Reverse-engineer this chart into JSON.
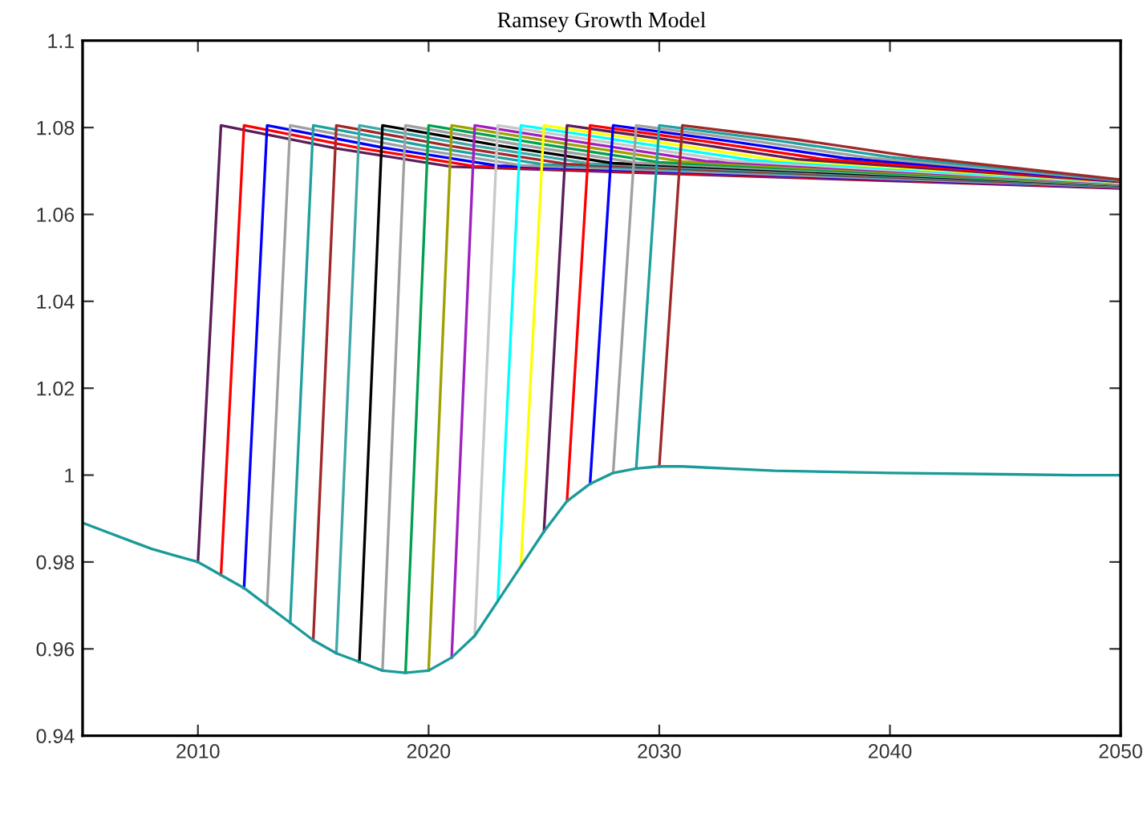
{
  "chart_data": {
    "type": "line",
    "title": "Ramsey Growth Model",
    "xlim": [
      2005,
      2050
    ],
    "xticks": [
      2010,
      2020,
      2030,
      2040,
      2050
    ],
    "ylim": [
      0.94,
      1.1
    ],
    "yticks": [
      0.94,
      0.96,
      0.98,
      1,
      1.02,
      1.04,
      1.06,
      1.08,
      1.1
    ],
    "grid": false,
    "legend": false,
    "series": [
      {
        "color": "#5a1e5a",
        "x": [
          2010,
          2011,
          2016,
          2021,
          2050
        ],
        "values": [
          0.98,
          1.0805,
          1.0752,
          1.071,
          1.066
        ]
      },
      {
        "color": "#ff0000",
        "x": [
          2011,
          2012,
          2017,
          2022,
          2050
        ],
        "values": [
          0.977,
          1.0805,
          1.0753,
          1.0711,
          1.0661
        ]
      },
      {
        "color": "#0000ff",
        "x": [
          2012,
          2013,
          2018,
          2023,
          2050
        ],
        "values": [
          0.974,
          1.0805,
          1.0754,
          1.0712,
          1.0662
        ]
      },
      {
        "color": "#a0a0a0",
        "x": [
          2013,
          2014,
          2019,
          2024,
          2050
        ],
        "values": [
          0.97,
          1.0805,
          1.0755,
          1.0713,
          1.0663
        ]
      },
      {
        "color": "#20a0a0",
        "x": [
          2014,
          2015,
          2020,
          2025,
          2050
        ],
        "values": [
          0.966,
          1.0805,
          1.0756,
          1.0715,
          1.0664
        ]
      },
      {
        "color": "#a02828",
        "x": [
          2015,
          2016,
          2021,
          2026,
          2050
        ],
        "values": [
          0.962,
          1.0805,
          1.0757,
          1.0716,
          1.0665
        ]
      },
      {
        "color": "#40a8a8",
        "x": [
          2016,
          2017,
          2022,
          2027,
          2050
        ],
        "values": [
          0.959,
          1.0805,
          1.0758,
          1.0717,
          1.0666
        ]
      },
      {
        "color": "#000000",
        "x": [
          2017,
          2018,
          2023,
          2028,
          2050
        ],
        "values": [
          0.957,
          1.0805,
          1.0759,
          1.0718,
          1.0667
        ]
      },
      {
        "color": "#a0a0a0",
        "x": [
          2018,
          2019,
          2024,
          2029,
          2050
        ],
        "values": [
          0.955,
          1.0805,
          1.076,
          1.0719,
          1.0668
        ]
      },
      {
        "color": "#00a050",
        "x": [
          2019,
          2020,
          2025,
          2030,
          2050
        ],
        "values": [
          0.9545,
          1.0805,
          1.0761,
          1.072,
          1.0669
        ]
      },
      {
        "color": "#a0a000",
        "x": [
          2020,
          2021,
          2026,
          2031,
          2050
        ],
        "values": [
          0.955,
          1.0805,
          1.0762,
          1.0722,
          1.067
        ]
      },
      {
        "color": "#a020c0",
        "x": [
          2021,
          2022,
          2027,
          2032,
          2050
        ],
        "values": [
          0.958,
          1.0805,
          1.0763,
          1.0723,
          1.0671
        ]
      },
      {
        "color": "#c8c8c8",
        "x": [
          2022,
          2023,
          2028,
          2033,
          2050
        ],
        "values": [
          0.963,
          1.0805,
          1.0764,
          1.0724,
          1.0672
        ]
      },
      {
        "color": "#00ffff",
        "x": [
          2023,
          2024,
          2029,
          2034,
          2050
        ],
        "values": [
          0.971,
          1.0805,
          1.0765,
          1.0725,
          1.0673
        ]
      },
      {
        "color": "#ffff00",
        "x": [
          2024,
          2025,
          2030,
          2035,
          2050
        ],
        "values": [
          0.979,
          1.0805,
          1.0766,
          1.0726,
          1.0674
        ]
      },
      {
        "color": "#5a1e5a",
        "x": [
          2025,
          2026,
          2031,
          2036,
          2050
        ],
        "values": [
          0.987,
          1.0805,
          1.0767,
          1.0727,
          1.0675
        ]
      },
      {
        "color": "#ff0000",
        "x": [
          2026,
          2027,
          2032,
          2037,
          2050
        ],
        "values": [
          0.994,
          1.0805,
          1.0768,
          1.0728,
          1.0676
        ]
      },
      {
        "color": "#0000ff",
        "x": [
          2027,
          2028,
          2033,
          2038,
          2050
        ],
        "values": [
          0.998,
          1.0805,
          1.0769,
          1.073,
          1.0677
        ]
      },
      {
        "color": "#a0a0a0",
        "x": [
          2028,
          2029,
          2034,
          2039,
          2050
        ],
        "values": [
          1.0005,
          1.0805,
          1.077,
          1.0731,
          1.0678
        ]
      },
      {
        "color": "#20a0a0",
        "x": [
          2029,
          2030,
          2035,
          2040,
          2050
        ],
        "values": [
          1.0015,
          1.0805,
          1.0771,
          1.0732,
          1.0679
        ]
      },
      {
        "color": "#a02828",
        "x": [
          2030,
          2031,
          2036,
          2041,
          2050
        ],
        "values": [
          1.002,
          1.0805,
          1.0772,
          1.0733,
          1.068
        ]
      },
      {
        "color": "#1a9a9a",
        "x": [
          2005,
          2006,
          2007,
          2008,
          2009,
          2010,
          2011,
          2012,
          2013,
          2014,
          2015,
          2016,
          2017,
          2018,
          2019,
          2020,
          2021,
          2022,
          2023,
          2024,
          2025,
          2026,
          2027,
          2028,
          2029,
          2030,
          2031,
          2035,
          2040,
          2048,
          2050
        ],
        "values": [
          0.989,
          0.987,
          0.985,
          0.983,
          0.9815,
          0.98,
          0.977,
          0.974,
          0.97,
          0.966,
          0.962,
          0.959,
          0.957,
          0.955,
          0.9545,
          0.955,
          0.958,
          0.963,
          0.971,
          0.979,
          0.987,
          0.994,
          0.998,
          1.0005,
          1.0015,
          1.002,
          1.002,
          1.001,
          1.0005,
          1.0,
          1.0
        ]
      }
    ]
  }
}
